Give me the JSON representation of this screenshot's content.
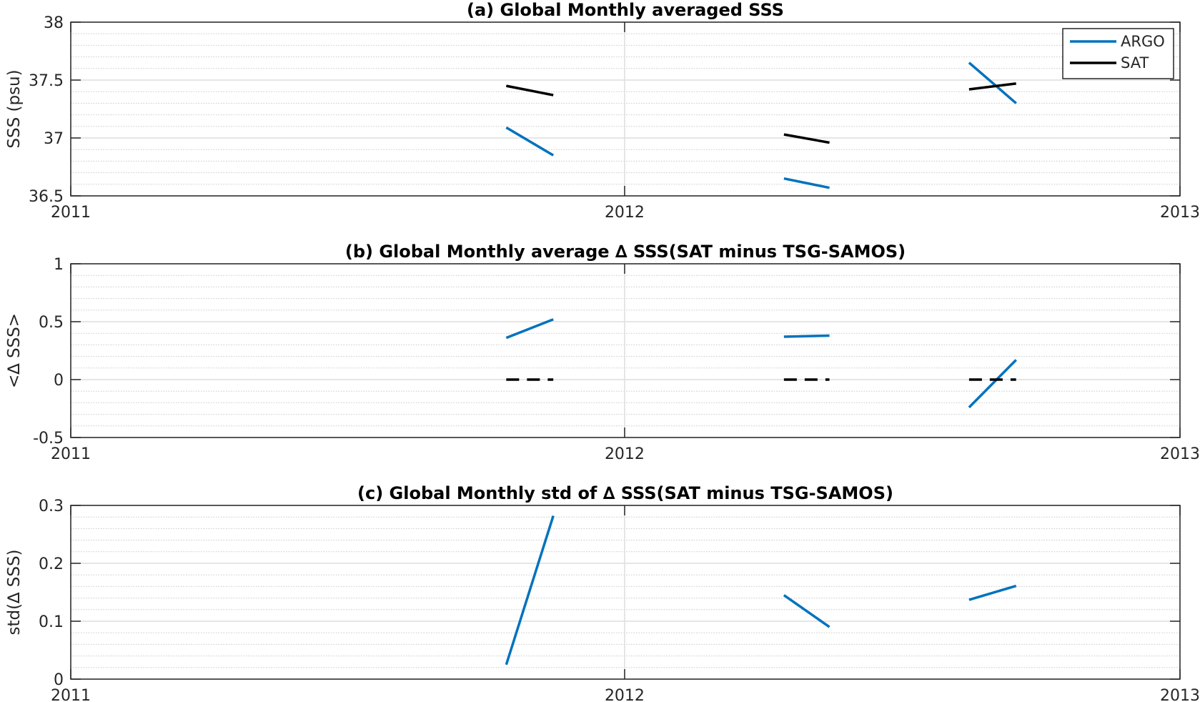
{
  "chart_data": [
    {
      "type": "line",
      "title": "(a) Global Monthly averaged SSS",
      "xlabel": "",
      "ylabel": "SSS (psu)",
      "xlim": [
        "2011-01-01",
        "2013-01-01"
      ],
      "ylim": [
        36.5,
        38
      ],
      "xticks": [
        "2011",
        "2012",
        "2013"
      ],
      "yticks": [
        36.5,
        37,
        37.5,
        38
      ],
      "ytick_labels": [
        "36.5",
        "37",
        "37.5",
        "38"
      ],
      "grid": true,
      "legend": "top-right",
      "series": [
        {
          "name": "ARGO",
          "color": "#0072BD",
          "style": "solid",
          "segments": [
            [
              [
                "2011-10-15",
                37.09
              ],
              [
                "2011-11-15",
                36.85
              ]
            ],
            [
              [
                "2012-04-15",
                36.65
              ],
              [
                "2012-05-15",
                36.57
              ]
            ],
            [
              [
                "2012-08-15",
                37.65
              ],
              [
                "2012-09-15",
                37.3
              ]
            ]
          ]
        },
        {
          "name": "SAT",
          "color": "#000000",
          "style": "solid",
          "segments": [
            [
              [
                "2011-10-15",
                37.45
              ],
              [
                "2011-11-15",
                37.37
              ]
            ],
            [
              [
                "2012-04-15",
                37.03
              ],
              [
                "2012-05-15",
                36.96
              ]
            ],
            [
              [
                "2012-08-15",
                37.42
              ],
              [
                "2012-09-15",
                37.47
              ]
            ]
          ]
        }
      ]
    },
    {
      "type": "line",
      "title": "(b) Global Monthly average ∆ SSS(SAT minus TSG-SAMOS)",
      "xlabel": "",
      "ylabel": "<∆ SSS>",
      "xlim": [
        "2011-01-01",
        "2013-01-01"
      ],
      "ylim": [
        -0.5,
        1
      ],
      "xticks": [
        "2011",
        "2012",
        "2013"
      ],
      "yticks": [
        -0.5,
        0,
        0.5,
        1
      ],
      "ytick_labels": [
        "-0.5",
        "0",
        "0.5",
        "1"
      ],
      "grid": true,
      "legend": "none",
      "series": [
        {
          "color": "#0072BD",
          "style": "solid",
          "segments": [
            [
              [
                "2011-10-15",
                0.36
              ],
              [
                "2011-11-15",
                0.52
              ]
            ],
            [
              [
                "2012-04-15",
                0.37
              ],
              [
                "2012-05-15",
                0.38
              ]
            ],
            [
              [
                "2012-08-15",
                -0.24
              ],
              [
                "2012-09-15",
                0.17
              ]
            ]
          ]
        },
        {
          "color": "#000000",
          "style": "dashed",
          "segments": [
            [
              [
                "2011-10-15",
                0
              ],
              [
                "2011-11-15",
                0
              ]
            ],
            [
              [
                "2012-04-15",
                0
              ],
              [
                "2012-05-15",
                0
              ]
            ],
            [
              [
                "2012-08-15",
                0
              ],
              [
                "2012-09-15",
                0
              ]
            ]
          ]
        }
      ]
    },
    {
      "type": "line",
      "title": "(c) Global Monthly std of ∆ SSS(SAT minus TSG-SAMOS)",
      "xlabel": "",
      "ylabel": "std(∆ SSS)",
      "xlim": [
        "2011-01-01",
        "2013-01-01"
      ],
      "ylim": [
        0,
        0.3
      ],
      "xticks": [
        "2011",
        "2012",
        "2013"
      ],
      "yticks": [
        0,
        0.1,
        0.2,
        0.3
      ],
      "ytick_labels": [
        "0",
        "0.1",
        "0.2",
        "0.3"
      ],
      "grid": true,
      "legend": "none",
      "series": [
        {
          "color": "#0072BD",
          "style": "solid",
          "segments": [
            [
              [
                "2011-10-15",
                0.025
              ],
              [
                "2011-11-15",
                0.282
              ]
            ],
            [
              [
                "2012-04-15",
                0.145
              ],
              [
                "2012-05-15",
                0.09
              ]
            ],
            [
              [
                "2012-08-15",
                0.137
              ],
              [
                "2012-09-15",
                0.161
              ]
            ]
          ]
        }
      ]
    }
  ]
}
